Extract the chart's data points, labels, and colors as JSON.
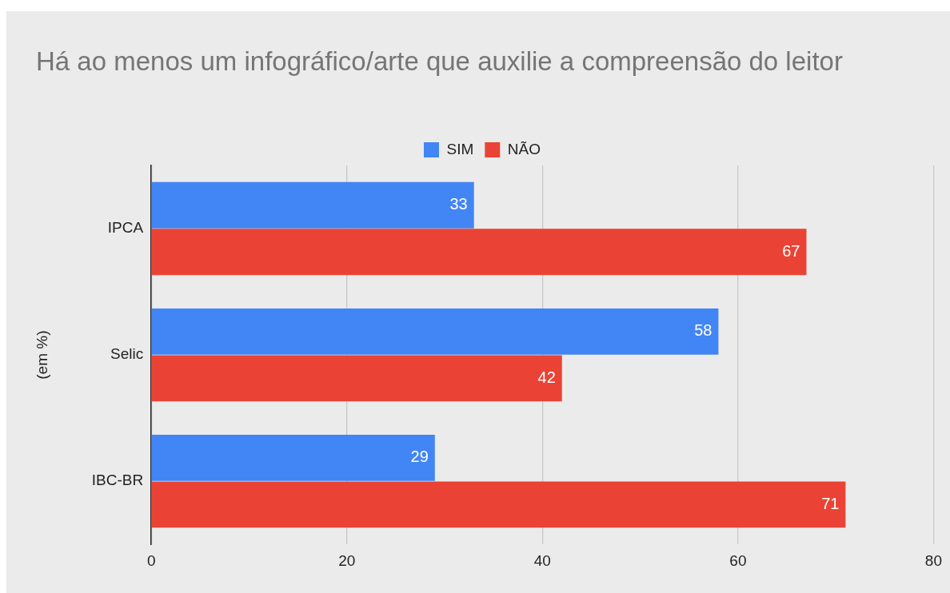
{
  "chart_data": {
    "type": "bar",
    "orientation": "horizontal",
    "title": "Há ao menos um infográfico/arte que auxilie a compreensão do leitor",
    "ylabel": "(em %)",
    "categories": [
      "IPCA",
      "Selic",
      "IBC-BR"
    ],
    "series": [
      {
        "name": "SIM",
        "color": "#4285f4",
        "values": [
          33,
          58,
          29
        ]
      },
      {
        "name": "NÃO",
        "color": "#ea4335",
        "values": [
          67,
          42,
          71
        ]
      }
    ],
    "xlim": [
      0,
      80
    ],
    "xticks": [
      0,
      20,
      40,
      60,
      80
    ],
    "grid": "x",
    "legend": "top",
    "data_labels": true
  }
}
